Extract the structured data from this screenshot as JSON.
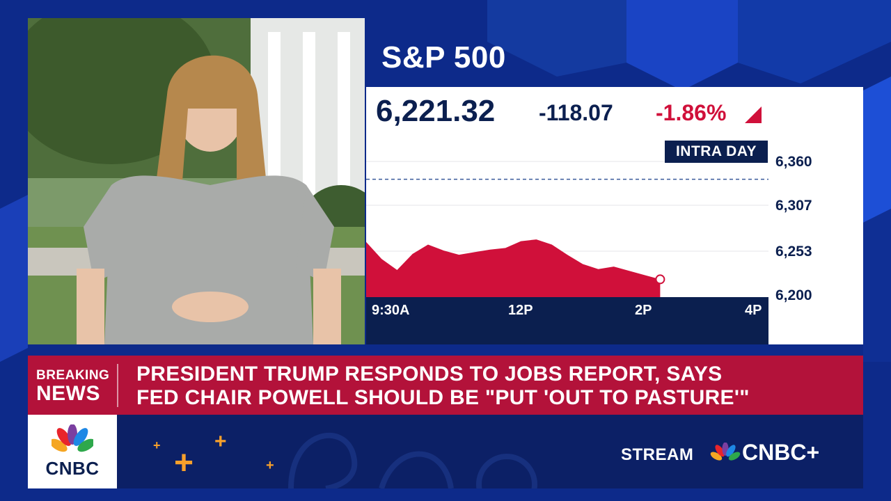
{
  "quote": {
    "title": "S&P 500",
    "price": "6,221.32",
    "change": "-118.07",
    "percent": "-1.86%",
    "range_label": "INTRA DAY",
    "down_color": "#d0103a"
  },
  "chart_data": {
    "type": "area",
    "x_ticks": [
      "9:30A",
      "12P",
      "2P",
      "4P"
    ],
    "y_ticks": [
      "6,360",
      "6,307",
      "6,253",
      "6,200"
    ],
    "ylim": [
      6200,
      6360
    ],
    "previous_close": 6339,
    "x": [
      "9:30",
      "9:45",
      "10:00",
      "10:15",
      "10:30",
      "10:45",
      "11:00",
      "11:15",
      "11:30",
      "11:45",
      "12:00",
      "12:15",
      "12:30",
      "12:45",
      "13:00",
      "13:15",
      "13:30",
      "13:45",
      "14:00",
      "14:15"
    ],
    "values": [
      6265,
      6245,
      6232,
      6251,
      6262,
      6255,
      6250,
      6253,
      6256,
      6258,
      6266,
      6268,
      6262,
      6250,
      6239,
      6233,
      6236,
      6231,
      6226,
      6221
    ]
  },
  "breaking": {
    "label_top": "BREAKING",
    "label_bottom": "NEWS",
    "headline_line1": "PRESIDENT TRUMP RESPONDS TO JOBS REPORT, SAYS",
    "headline_line2": "FED CHAIR POWELL SHOULD BE \"PUT 'OUT TO PASTURE'\""
  },
  "footer": {
    "logo": "CNBC",
    "stream_label": "STREAM",
    "stream_brand": "CNBC+"
  },
  "icons": {
    "logo": "nbc-peacock-icon",
    "decor": "plus-icon"
  }
}
